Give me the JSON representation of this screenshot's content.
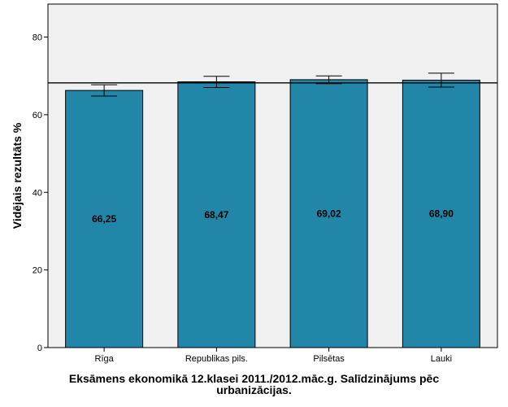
{
  "chart_data": {
    "type": "bar",
    "categories": [
      "Rīga",
      "Republikas pils.",
      "Pilsētas",
      "Lauki"
    ],
    "values": [
      66.25,
      68.47,
      69.02,
      68.9
    ],
    "value_labels": [
      "66,25",
      "68,47",
      "69,02",
      "68,90"
    ],
    "error_bars": [
      {
        "low": 64.8,
        "high": 67.7
      },
      {
        "low": 67.0,
        "high": 69.9
      },
      {
        "low": 68.0,
        "high": 70.0
      },
      {
        "low": 67.1,
        "high": 70.7
      }
    ],
    "reference_line": 68.2,
    "ylabel": "Vidējais rezultāts %",
    "yticks": [
      0,
      20,
      40,
      60,
      80
    ],
    "ytick_labels": [
      "0",
      "20",
      "40",
      "60",
      "80"
    ],
    "ylim": [
      0,
      88.5
    ],
    "grid": false,
    "colors": {
      "bar": "#2286a8",
      "plot_bg": "#f0f0f0"
    }
  },
  "caption_line1": "Eksāmens ekonomikā 12.klasei 2011./2012.māc.g. Salīdzinājums pēc",
  "caption_line2": "urbanizācijas."
}
